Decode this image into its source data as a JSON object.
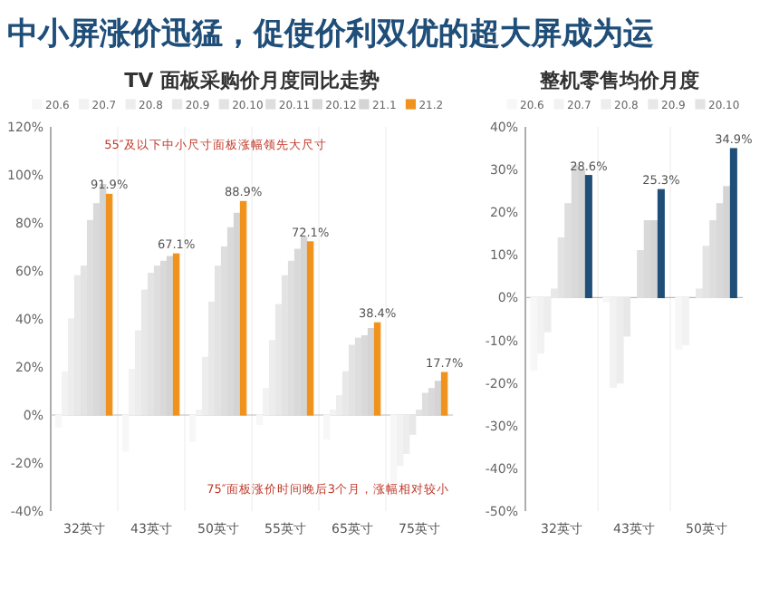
{
  "chart_data": [
    {
      "type": "bar",
      "title": "中小屏涨价迅猛，促使价利双优的超大屏成为运",
      "subtitle": "TV 面板采购价月度同比走势",
      "legend": "top",
      "categories": [
        "32英寸",
        "43英寸",
        "50英寸",
        "55英寸",
        "65英寸",
        "75英寸"
      ],
      "series": [
        {
          "name": "20.6",
          "color": "#f7f7f7",
          "values": [
            -5,
            -15,
            -11,
            -4,
            -10,
            -28
          ]
        },
        {
          "name": "20.7",
          "color": "#f2f2f2",
          "values": [
            18,
            19,
            2,
            11,
            2,
            -21
          ]
        },
        {
          "name": "20.8",
          "color": "#ededed",
          "values": [
            40,
            35,
            24,
            31,
            8,
            -16
          ]
        },
        {
          "name": "20.9",
          "color": "#e8e8e8",
          "values": [
            58,
            52,
            47,
            46,
            18,
            -8
          ]
        },
        {
          "name": "20.10",
          "color": "#e3e3e3",
          "values": [
            62,
            59,
            62,
            58,
            29,
            2
          ]
        },
        {
          "name": "20.11",
          "color": "#dedede",
          "values": [
            81,
            62,
            70,
            64,
            32,
            9
          ]
        },
        {
          "name": "20.12",
          "color": "#d9d9d9",
          "values": [
            88,
            64,
            78,
            69,
            33,
            11
          ]
        },
        {
          "name": "21.1",
          "color": "#d4d4d4",
          "values": [
            96,
            66,
            84,
            74,
            36,
            14
          ]
        },
        {
          "name": "21.2",
          "color": "#f0931e",
          "values": [
            91.9,
            67.1,
            88.9,
            72.1,
            38.4,
            17.7
          ],
          "value_labels": [
            "91.9%",
            "67.1%",
            "88.9%",
            "72.1%",
            "38.4%",
            "17.7%"
          ]
        }
      ],
      "ylim": [
        -40,
        120
      ],
      "yticks": [
        {
          "value": -40,
          "label": "-40%"
        },
        {
          "value": -20,
          "label": "-20%"
        },
        {
          "value": 0,
          "label": "0%"
        },
        {
          "value": 20,
          "label": "20%"
        },
        {
          "value": 40,
          "label": "40%"
        },
        {
          "value": 60,
          "label": "60%"
        },
        {
          "value": 80,
          "label": "80%"
        },
        {
          "value": 100,
          "label": "100%"
        },
        {
          "value": 120,
          "label": "120%"
        }
      ],
      "annotations": [
        "55″及以下中小尺寸面板涨幅领先大尺寸",
        "75″面板涨价时间晚后3个月，涨幅相对较小"
      ]
    },
    {
      "type": "bar",
      "title": "整机零售均价月度",
      "legend": "top",
      "categories": [
        "32英寸",
        "43英寸",
        "50英寸"
      ],
      "series": [
        {
          "name": "20.6",
          "color": "#f7f7f7",
          "values": [
            -17,
            -1,
            -12
          ]
        },
        {
          "name": "20.7",
          "color": "#f2f2f2",
          "values": [
            -13,
            -21,
            -11
          ]
        },
        {
          "name": "20.8",
          "color": "#ededed",
          "values": [
            -8,
            -20,
            null
          ]
        },
        {
          "name": "20.9",
          "color": "#e8e8e8",
          "values": [
            2,
            -9,
            2
          ]
        },
        {
          "name": "20.10",
          "color": "#e3e3e3",
          "values": [
            14,
            null,
            12
          ]
        },
        {
          "color": "#dedede",
          "values": [
            22,
            11,
            18
          ]
        },
        {
          "color": "#d9d9d9",
          "values": [
            31,
            18,
            22
          ]
        },
        {
          "color": "#d4d4d4",
          "values": [
            30,
            18,
            26
          ]
        },
        {
          "color": "#1f4e79",
          "values": [
            28.6,
            25.3,
            34.9
          ],
          "value_labels": [
            "28.6%",
            "25.3%",
            "34.9%"
          ]
        }
      ],
      "ylim": [
        -50,
        40
      ],
      "yticks": [
        {
          "value": -50,
          "label": "-50%"
        },
        {
          "value": -40,
          "label": "-40%"
        },
        {
          "value": -30,
          "label": "-30%"
        },
        {
          "value": -20,
          "label": "-20%"
        },
        {
          "value": -10,
          "label": "-10%"
        },
        {
          "value": 0,
          "label": "0%"
        },
        {
          "value": 10,
          "label": "10%"
        },
        {
          "value": 20,
          "label": "20%"
        },
        {
          "value": 30,
          "label": "30%"
        },
        {
          "value": 40,
          "label": "40%"
        }
      ]
    }
  ]
}
